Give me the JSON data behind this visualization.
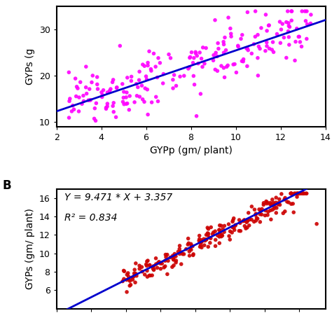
{
  "panel_A": {
    "scatter_color": "#FF00FF",
    "line_color": "#0000CD",
    "xlabel": "GYPp (gm/ plant)",
    "ylabel": "GYPs (g",
    "xlim": [
      2,
      14
    ],
    "ylim": [
      9,
      35
    ],
    "xticks": [
      2,
      4,
      6,
      8,
      10,
      12,
      14
    ],
    "yticks": [
      10,
      20,
      30
    ],
    "slope": 1.65,
    "intercept": 9.0,
    "x_min": 2.5,
    "x_max": 13.5,
    "noise_std": 3.5,
    "seed": 42,
    "n_points": 220
  },
  "panel_B": {
    "scatter_color": "#CC0000",
    "line_color": "#0000CD",
    "ylabel": "GYPs (gm/ plant)",
    "xlim": [
      0,
      1.55
    ],
    "ylim": [
      4,
      17
    ],
    "yticks": [
      6,
      8,
      10,
      12,
      14,
      16
    ],
    "equation": "Y = 9.471 * X + 3.357",
    "r_squared": "R² = 0.834",
    "slope": 9.471,
    "intercept": 3.357,
    "x_min": 0.38,
    "x_max": 1.45,
    "noise_std": 0.6,
    "seed": 7,
    "n_points": 240,
    "label": "B"
  },
  "font_size_label": 10,
  "font_size_tick": 9,
  "font_size_eq": 10,
  "bg_color": "#FFFFFF"
}
